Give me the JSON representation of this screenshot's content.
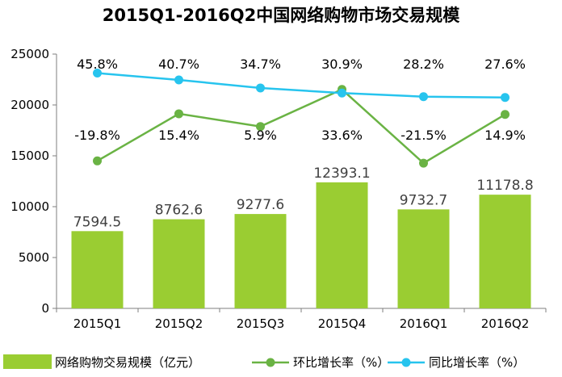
{
  "chart_data": {
    "type": "bar",
    "title": "2015Q1-2016Q2中国网络购物市场交易规模",
    "categories": [
      "2015Q1",
      "2015Q2",
      "2015Q3",
      "2015Q4",
      "2016Q1",
      "2016Q2"
    ],
    "ylim": [
      0,
      25000
    ],
    "yticks": [
      "0",
      "5000",
      "10000",
      "15000",
      "20000",
      "25000"
    ],
    "series": [
      {
        "name": "网络购物交易规模（亿元）",
        "type": "bar",
        "color": "#9ACD32",
        "values": [
          7594.5,
          8762.6,
          9277.6,
          12393.1,
          9732.7,
          11178.8
        ],
        "labels": [
          "7594.5",
          "8762.6",
          "9277.6",
          "12393.1",
          "9732.7",
          "11178.8"
        ]
      },
      {
        "name": "环比增长率（%）",
        "type": "line",
        "color": "#6AB344",
        "values": [
          -19.8,
          15.4,
          5.9,
          33.6,
          -21.5,
          14.9
        ],
        "labels": [
          "-19.8%",
          "15.4%",
          "5.9%",
          "33.6%",
          "-21.5%",
          "14.9%"
        ]
      },
      {
        "name": "同比增长率（%）",
        "type": "line",
        "color": "#27C4EE",
        "values": [
          45.8,
          40.7,
          34.7,
          30.9,
          28.2,
          27.6
        ],
        "labels": [
          "45.8%",
          "40.7%",
          "34.7%",
          "30.9%",
          "28.2%",
          "27.6%"
        ]
      }
    ],
    "grid": false,
    "legend": "bottom"
  }
}
